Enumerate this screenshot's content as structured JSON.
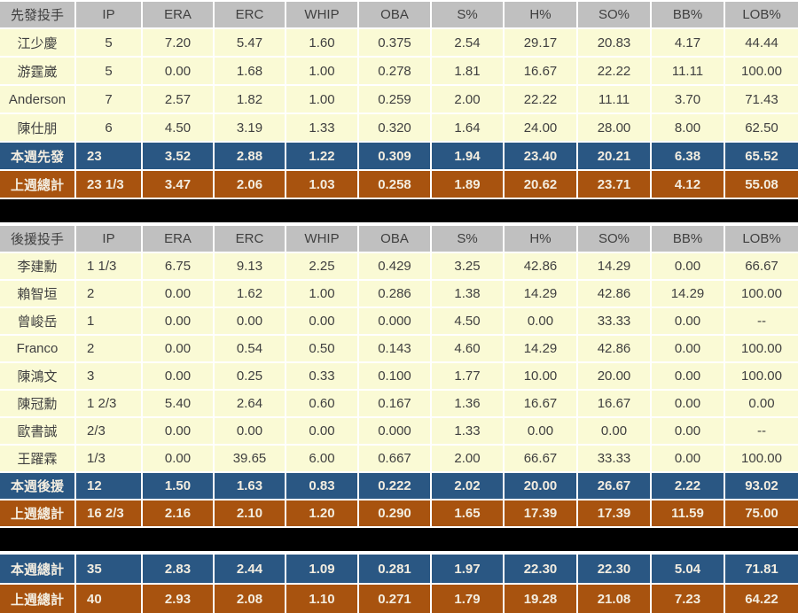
{
  "colors": {
    "header_bg": "#C0C0C0",
    "row_bg": "#FAFAD5",
    "summary_blue": "#2A5783",
    "summary_brown": "#A8530F",
    "separator": "#000000",
    "data_text": "#404040",
    "summary_text": "#F3EDE0",
    "grid_line": "#FFFFFF"
  },
  "tables": [
    {
      "name": "starters",
      "header": [
        "先發投手",
        "IP",
        "ERA",
        "ERC",
        "WHIP",
        "OBA",
        "S%",
        "H%",
        "SO%",
        "BB%",
        "LOB%"
      ],
      "rows": [
        {
          "type": "player",
          "ipAlign": "center",
          "cells": [
            "江少慶",
            "5",
            "7.20",
            "5.47",
            "1.60",
            "0.375",
            "2.54",
            "29.17",
            "20.83",
            "4.17",
            "44.44"
          ]
        },
        {
          "type": "player",
          "ipAlign": "center",
          "cells": [
            "游霆崴",
            "5",
            "0.00",
            "1.68",
            "1.00",
            "0.278",
            "1.81",
            "16.67",
            "22.22",
            "11.11",
            "100.00"
          ]
        },
        {
          "type": "player",
          "ipAlign": "center",
          "cells": [
            "Anderson",
            "7",
            "2.57",
            "1.82",
            "1.00",
            "0.259",
            "2.00",
            "22.22",
            "11.11",
            "3.70",
            "71.43"
          ]
        },
        {
          "type": "player",
          "ipAlign": "center",
          "cells": [
            "陳仕朋",
            "6",
            "4.50",
            "3.19",
            "1.33",
            "0.320",
            "1.64",
            "24.00",
            "28.00",
            "8.00",
            "62.50"
          ]
        },
        {
          "type": "summary-blue",
          "ipAlign": "left",
          "cells": [
            "本週先發",
            "23",
            "3.52",
            "2.88",
            "1.22",
            "0.309",
            "1.94",
            "23.40",
            "20.21",
            "6.38",
            "65.52"
          ]
        },
        {
          "type": "summary-brown",
          "ipAlign": "left",
          "cells": [
            "上週總計",
            "23 1/3",
            "3.47",
            "2.06",
            "1.03",
            "0.258",
            "1.89",
            "20.62",
            "23.71",
            "4.12",
            "55.08"
          ]
        }
      ]
    },
    {
      "name": "relievers",
      "header": [
        "後援投手",
        "IP",
        "ERA",
        "ERC",
        "WHIP",
        "OBA",
        "S%",
        "H%",
        "SO%",
        "BB%",
        "LOB%"
      ],
      "rows": [
        {
          "type": "player",
          "ipAlign": "left",
          "cells": [
            "李建勳",
            "1 1/3",
            "6.75",
            "9.13",
            "2.25",
            "0.429",
            "3.25",
            "42.86",
            "14.29",
            "0.00",
            "66.67"
          ]
        },
        {
          "type": "player",
          "ipAlign": "left",
          "cells": [
            "賴智垣",
            "2",
            "0.00",
            "1.62",
            "1.00",
            "0.286",
            "1.38",
            "14.29",
            "42.86",
            "14.29",
            "100.00"
          ]
        },
        {
          "type": "player",
          "ipAlign": "left",
          "cells": [
            "曾峻岳",
            "1",
            "0.00",
            "0.00",
            "0.00",
            "0.000",
            "4.50",
            "0.00",
            "33.33",
            "0.00",
            "--"
          ]
        },
        {
          "type": "player",
          "ipAlign": "left",
          "cells": [
            "Franco",
            "2",
            "0.00",
            "0.54",
            "0.50",
            "0.143",
            "4.60",
            "14.29",
            "42.86",
            "0.00",
            "100.00"
          ]
        },
        {
          "type": "player",
          "ipAlign": "left",
          "cells": [
            "陳鴻文",
            "3",
            "0.00",
            "0.25",
            "0.33",
            "0.100",
            "1.77",
            "10.00",
            "20.00",
            "0.00",
            "100.00"
          ]
        },
        {
          "type": "player",
          "ipAlign": "left",
          "cells": [
            "陳冠勳",
            "1 2/3",
            "5.40",
            "2.64",
            "0.60",
            "0.167",
            "1.36",
            "16.67",
            "16.67",
            "0.00",
            "0.00"
          ]
        },
        {
          "type": "player",
          "ipAlign": "left",
          "cells": [
            "歐書誠",
            "2/3",
            "0.00",
            "0.00",
            "0.00",
            "0.000",
            "1.33",
            "0.00",
            "0.00",
            "0.00",
            "--"
          ]
        },
        {
          "type": "player",
          "ipAlign": "left",
          "cells": [
            "王躍霖",
            "1/3",
            "0.00",
            "39.65",
            "6.00",
            "0.667",
            "2.00",
            "66.67",
            "33.33",
            "0.00",
            "100.00"
          ]
        },
        {
          "type": "summary-blue",
          "ipAlign": "left",
          "cells": [
            "本週後援",
            "12",
            "1.50",
            "1.63",
            "0.83",
            "0.222",
            "2.02",
            "20.00",
            "26.67",
            "2.22",
            "93.02"
          ]
        },
        {
          "type": "summary-brown",
          "ipAlign": "left",
          "cells": [
            "上週總計",
            "16 2/3",
            "2.16",
            "2.10",
            "1.20",
            "0.290",
            "1.65",
            "17.39",
            "17.39",
            "11.59",
            "75.00"
          ]
        }
      ]
    },
    {
      "name": "totals",
      "header": null,
      "rows": [
        {
          "type": "summary-blue",
          "ipAlign": "left",
          "cells": [
            "本週總計",
            "35",
            "2.83",
            "2.44",
            "1.09",
            "0.281",
            "1.97",
            "22.30",
            "22.30",
            "5.04",
            "71.81"
          ]
        },
        {
          "type": "summary-brown",
          "ipAlign": "left",
          "cells": [
            "上週總計",
            "40",
            "2.93",
            "2.08",
            "1.10",
            "0.271",
            "1.79",
            "19.28",
            "21.08",
            "7.23",
            "64.22"
          ]
        }
      ]
    }
  ]
}
